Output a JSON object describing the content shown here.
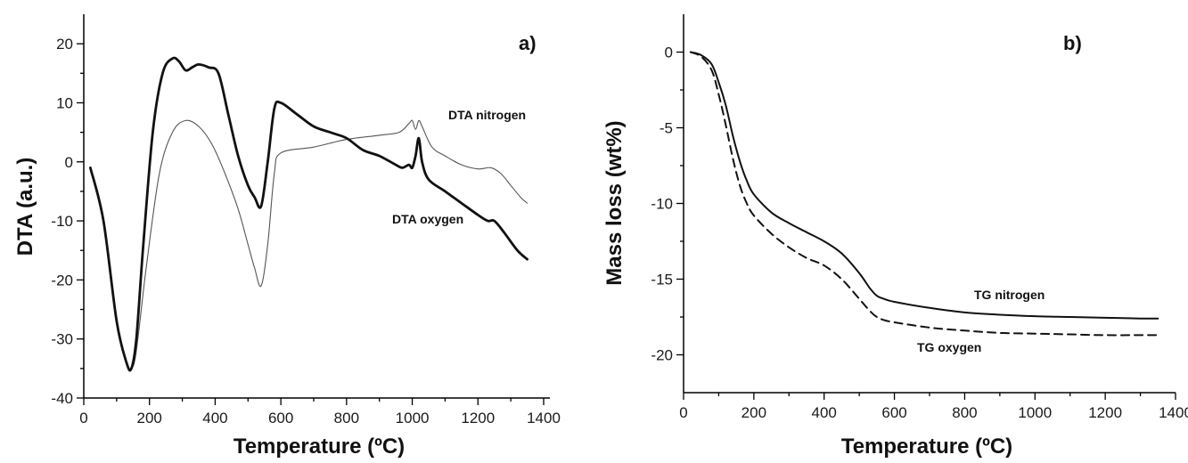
{
  "chart_data": [
    {
      "type": "line",
      "panel_label": "a)",
      "xlabel": "Temperature (ºC)",
      "ylabel": "DTA (a.u.)",
      "xlim": [
        0,
        1400
      ],
      "ylim": [
        -40,
        25
      ],
      "xticks": [
        0,
        200,
        400,
        600,
        800,
        1000,
        1200,
        1400
      ],
      "yticks": [
        -40,
        -30,
        -20,
        -10,
        0,
        10,
        20
      ],
      "ytick_labels": [
        "-40",
        "-30",
        "-20",
        "-10",
        "0",
        "10",
        "20"
      ],
      "grid": false,
      "series": [
        {
          "name": "DTA nitrogen",
          "color": "#555555",
          "style": "thin",
          "x": [
            20,
            60,
            100,
            130,
            145,
            160,
            190,
            230,
            270,
            310,
            350,
            390,
            430,
            470,
            500,
            520,
            540,
            560,
            580,
            600,
            700,
            800,
            900,
            960,
            990,
            1000,
            1010,
            1020,
            1030,
            1060,
            1100,
            1150,
            1200,
            1240,
            1270,
            1300,
            1330,
            1350
          ],
          "values": [
            -1,
            -10,
            -27,
            -34,
            -35,
            -32,
            -18,
            -2,
            5,
            7,
            6,
            3,
            -2,
            -8,
            -14,
            -18,
            -21,
            -14,
            -2,
            1.5,
            2.5,
            3.8,
            4.5,
            5,
            6.5,
            7,
            5.5,
            7,
            6,
            2.5,
            1,
            -0.5,
            -1.2,
            -1,
            -2,
            -4,
            -6,
            -7
          ]
        },
        {
          "name": "DTA oxygen",
          "color": "#111111",
          "style": "thick",
          "x": [
            20,
            60,
            100,
            130,
            145,
            160,
            180,
            210,
            240,
            270,
            290,
            310,
            330,
            350,
            380,
            410,
            440,
            470,
            500,
            520,
            540,
            560,
            580,
            600,
            650,
            700,
            750,
            800,
            850,
            900,
            950,
            970,
            990,
            1000,
            1010,
            1020,
            1030,
            1050,
            1100,
            1150,
            1200,
            1230,
            1250,
            1280,
            1320,
            1350
          ],
          "values": [
            -1,
            -10,
            -27,
            -34,
            -35,
            -30,
            -15,
            5,
            15,
            17.5,
            17,
            15.5,
            16,
            16.5,
            16,
            15,
            8,
            1,
            -4,
            -6,
            -7.5,
            0,
            9,
            10,
            8,
            6,
            5,
            4,
            2,
            1,
            -0.5,
            -1,
            -0.5,
            -1,
            1,
            4,
            0,
            -3,
            -5,
            -7,
            -9,
            -10,
            -10,
            -12,
            -15,
            -16.5
          ]
        }
      ],
      "annotations": [
        "DTA nitrogen",
        "DTA oxygen"
      ]
    },
    {
      "type": "line",
      "panel_label": "b)",
      "xlabel": "Temperature (ºC)",
      "ylabel": "Mass loss (wt%)",
      "xlim": [
        0,
        1400
      ],
      "ylim": [
        -22.5,
        2.5
      ],
      "xticks": [
        0,
        200,
        400,
        600,
        800,
        1000,
        1200,
        1400
      ],
      "yticks": [
        -20,
        -15,
        -10,
        -5,
        0
      ],
      "ytick_labels": [
        "-20",
        "-15",
        "-10",
        "-5",
        "0"
      ],
      "grid": false,
      "series": [
        {
          "name": "TG nitrogen",
          "color": "#111111",
          "style": "solid",
          "x": [
            20,
            50,
            80,
            100,
            120,
            140,
            160,
            180,
            200,
            250,
            300,
            350,
            400,
            450,
            500,
            530,
            550,
            570,
            600,
            700,
            800,
            900,
            1000,
            1100,
            1200,
            1300,
            1350
          ],
          "values": [
            0,
            -0.2,
            -0.8,
            -2,
            -3.5,
            -5.5,
            -7.2,
            -8.5,
            -9.4,
            -10.6,
            -11.3,
            -11.9,
            -12.5,
            -13.3,
            -14.6,
            -15.6,
            -16.1,
            -16.3,
            -16.5,
            -16.9,
            -17.2,
            -17.35,
            -17.45,
            -17.5,
            -17.55,
            -17.6,
            -17.6
          ]
        },
        {
          "name": "TG oxygen",
          "color": "#111111",
          "style": "dashed",
          "x": [
            20,
            50,
            80,
            100,
            120,
            140,
            160,
            180,
            200,
            250,
            300,
            350,
            400,
            450,
            500,
            530,
            550,
            570,
            600,
            700,
            800,
            900,
            1000,
            1100,
            1200,
            1300,
            1350
          ],
          "values": [
            0,
            -0.3,
            -1.2,
            -2.8,
            -4.8,
            -7,
            -8.8,
            -10,
            -10.8,
            -12,
            -12.9,
            -13.6,
            -14.1,
            -15,
            -16.3,
            -17.1,
            -17.5,
            -17.7,
            -17.85,
            -18.2,
            -18.4,
            -18.55,
            -18.6,
            -18.65,
            -18.7,
            -18.7,
            -18.7
          ]
        }
      ],
      "annotations": [
        "TG nitrogen",
        "TG oxygen"
      ]
    }
  ]
}
